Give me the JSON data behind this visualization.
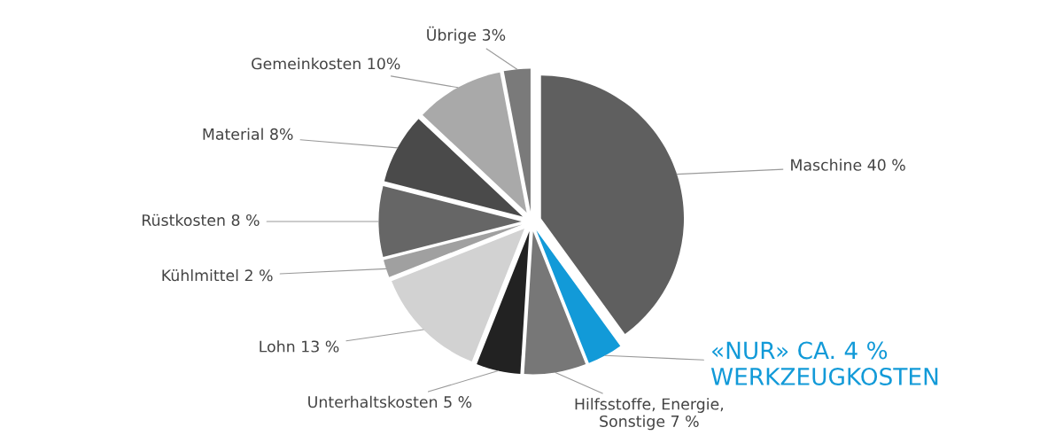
{
  "chart_data": {
    "type": "pie",
    "categories": [
      "Maschine 40 %",
      "«NUR» CA. 4 %\nWERKZEUGKOSTEN",
      "Hilfsstoffe, Energie,\nSonstige 7 %",
      "Unterhaltskosten 5 %",
      "Lohn 13 %",
      "Kühlmittel 2 %",
      "Rüstkosten 8 %",
      "Material 8%",
      "Gemeinkosten 10%",
      "Übrige 3%"
    ],
    "values": [
      40,
      4,
      7,
      5,
      13,
      2,
      8,
      8,
      10,
      3
    ],
    "colors": [
      "#5f5f5f",
      "#129ad8",
      "#777777",
      "#222222",
      "#d2d2d2",
      "#a0a0a0",
      "#666666",
      "#4a4a4a",
      "#a9a9a9",
      "#7a7a7a"
    ]
  }
}
